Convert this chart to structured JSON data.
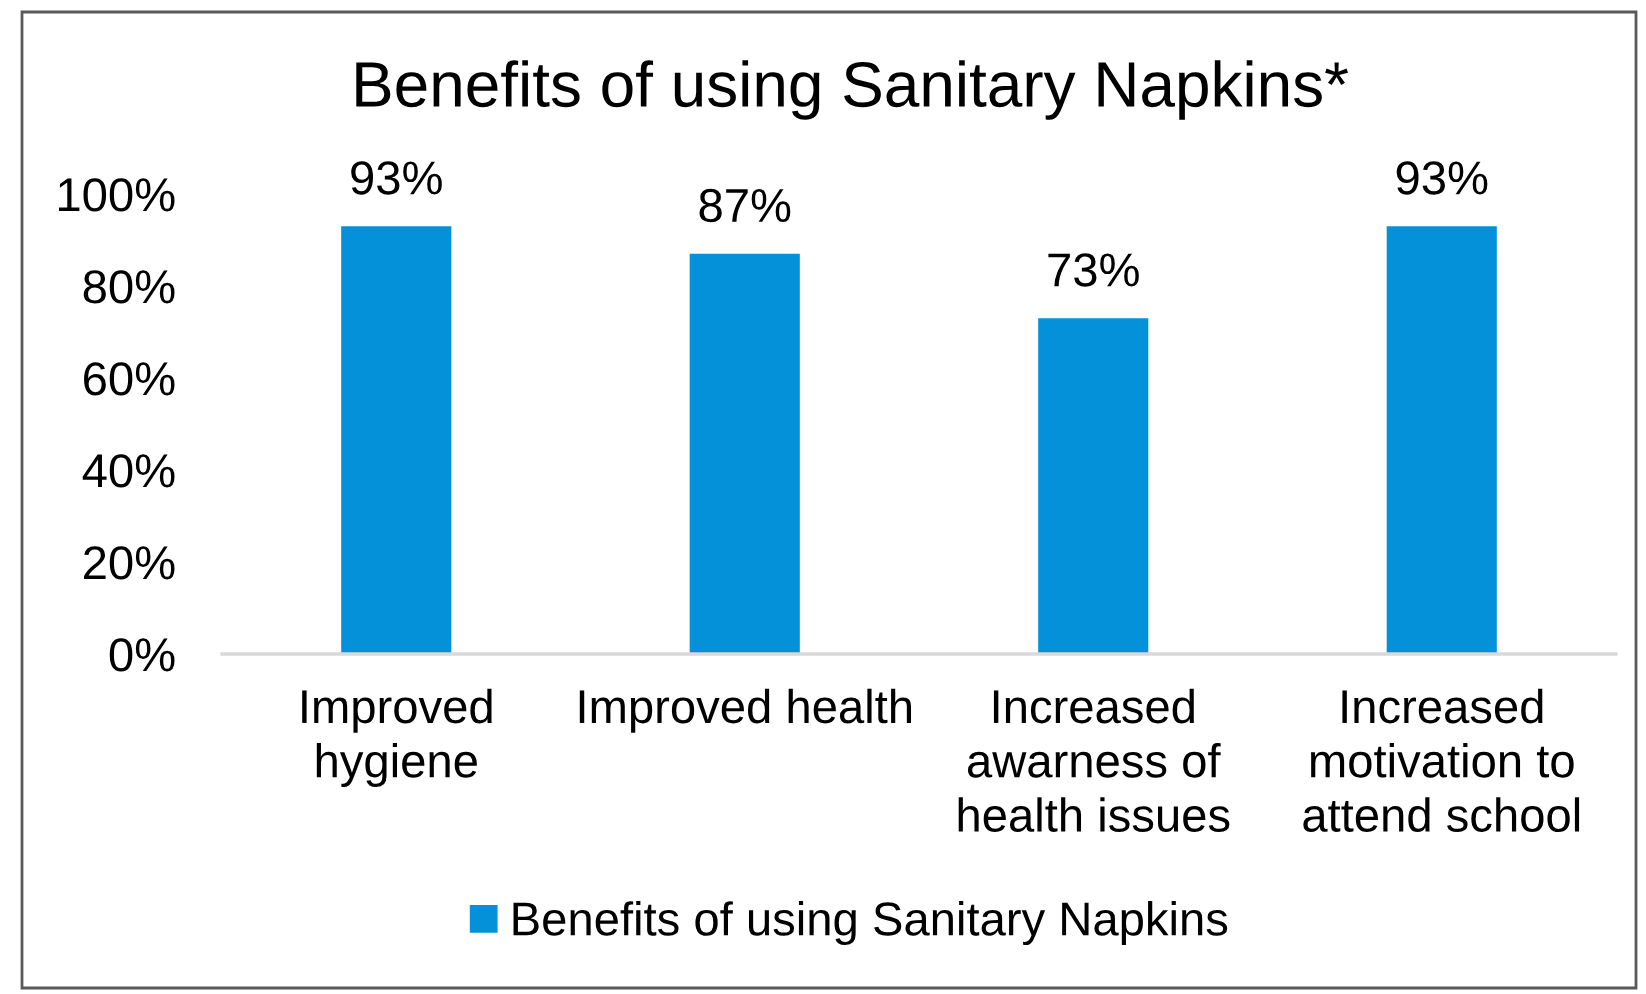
{
  "chart_data": {
    "type": "bar",
    "title": "Benefits of using Sanitary Napkins*",
    "categories": [
      "Improved\nhygiene",
      "Improved health",
      "Increased\nawarness of\nhealth issues",
      "Increased\nmotivation to\nattend school"
    ],
    "series": [
      {
        "name": "Benefits of using Sanitary Napkins",
        "color": "#0591da",
        "values": [
          93,
          87,
          73,
          93
        ],
        "value_labels": [
          "93%",
          "87%",
          "73%",
          "93%"
        ]
      }
    ],
    "ylim": [
      0,
      100
    ],
    "yticks": [
      {
        "value": 0,
        "label": "0%"
      },
      {
        "value": 20,
        "label": "20%"
      },
      {
        "value": 40,
        "label": "40%"
      },
      {
        "value": 60,
        "label": "60%"
      },
      {
        "value": 80,
        "label": "80%"
      },
      {
        "value": 100,
        "label": "100%"
      }
    ],
    "legend": "bottom"
  }
}
